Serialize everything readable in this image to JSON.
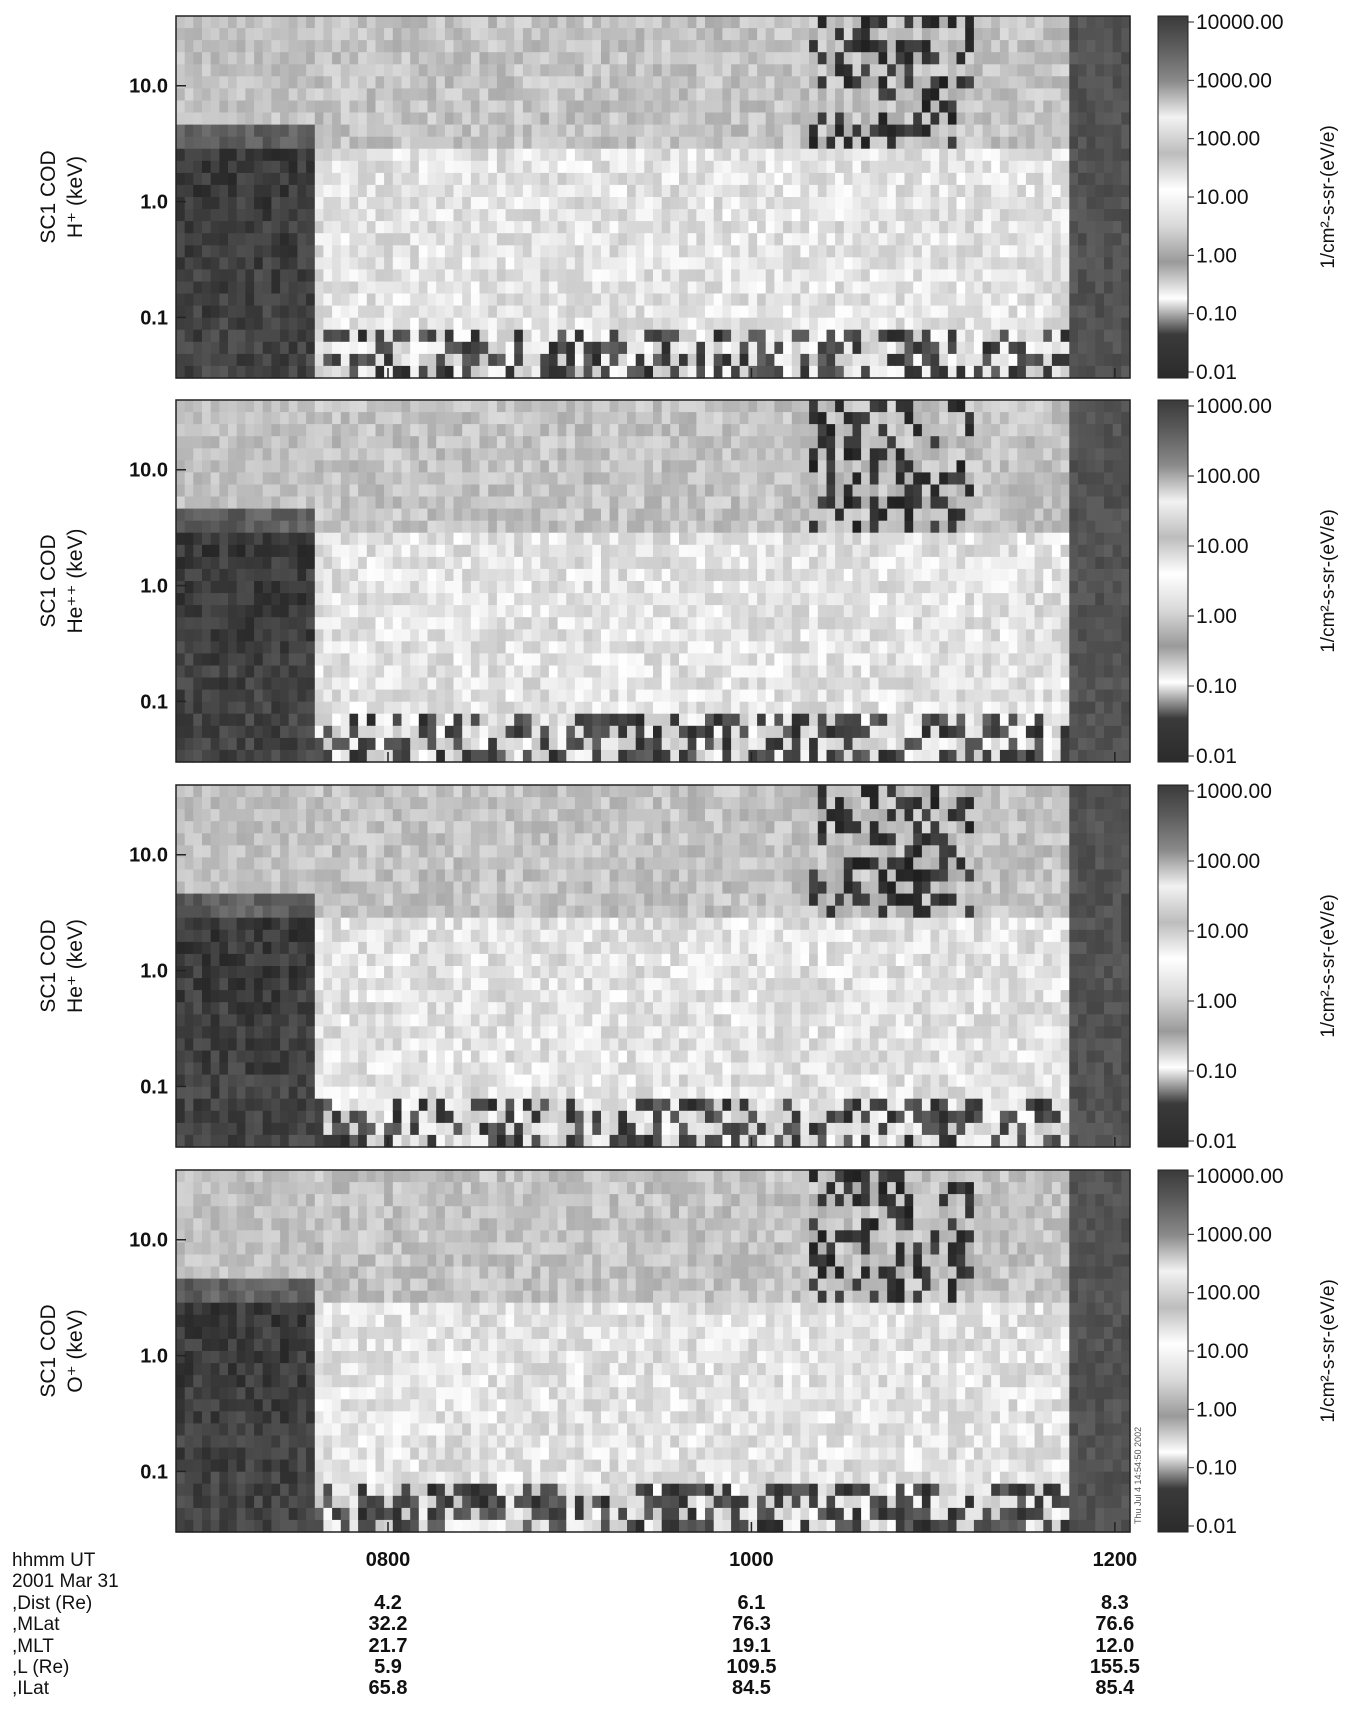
{
  "chart_data": {
    "type": "heatmap",
    "x_ticks": [
      "0800",
      "1000",
      "1200"
    ],
    "x_range_hhmm": [
      "0650",
      "1205"
    ],
    "y_scale": "log",
    "y_range_keV": [
      0.03,
      40
    ],
    "y_ticks": [
      "0.1",
      "1.0",
      "10.0"
    ],
    "colormap": "grayscale",
    "panels": [
      {
        "instrument": "SC1 COD",
        "species_label": "H⁺ (keV)",
        "colorbar_ticks": [
          "10000.00",
          "1000.00",
          "100.00",
          "10.00",
          "1.00",
          "0.10",
          "0.01"
        ],
        "colorbar_unit": "1/cm²-s-sr-(eV/e)"
      },
      {
        "instrument": "SC1 COD",
        "species_label": "He⁺⁺ (keV)",
        "colorbar_ticks": [
          "1000.00",
          "100.00",
          "10.00",
          "1.00",
          "0.10",
          "0.01"
        ],
        "colorbar_unit": "1/cm²-s-sr-(eV/e)"
      },
      {
        "instrument": "SC1 COD",
        "species_label": "He⁺ (keV)",
        "colorbar_ticks": [
          "1000.00",
          "100.00",
          "10.00",
          "1.00",
          "0.10",
          "0.01"
        ],
        "colorbar_unit": "1/cm²-s-sr-(eV/e)"
      },
      {
        "instrument": "SC1 COD",
        "species_label": "O⁺ (keV)",
        "colorbar_ticks": [
          "10000.00",
          "1000.00",
          "100.00",
          "10.00",
          "1.00",
          "0.10",
          "0.01"
        ],
        "colorbar_unit": "1/cm²-s-sr-(eV/e)"
      }
    ],
    "ephemeris": {
      "labels": [
        "hhmm UT",
        "2001 Mar 31",
        ",Dist (Re)",
        ",MLat",
        ",MLT",
        ",L (Re)",
        ",ILat"
      ],
      "columns": [
        {
          "time": "0800",
          "Dist": "4.2",
          "MLat": "32.2",
          "MLT": "21.7",
          "L": "5.9",
          "ILat": "65.8"
        },
        {
          "time": "1000",
          "Dist": "6.1",
          "MLat": "76.3",
          "MLT": "19.1",
          "L": "109.5",
          "ILat": "84.5"
        },
        {
          "time": "1200",
          "Dist": "8.3",
          "MLat": "76.6",
          "MLT": "12.0",
          "L": "155.5",
          "ILat": "85.4"
        }
      ]
    },
    "stamp": "Thu Jul  4 14:54:50 2002"
  }
}
